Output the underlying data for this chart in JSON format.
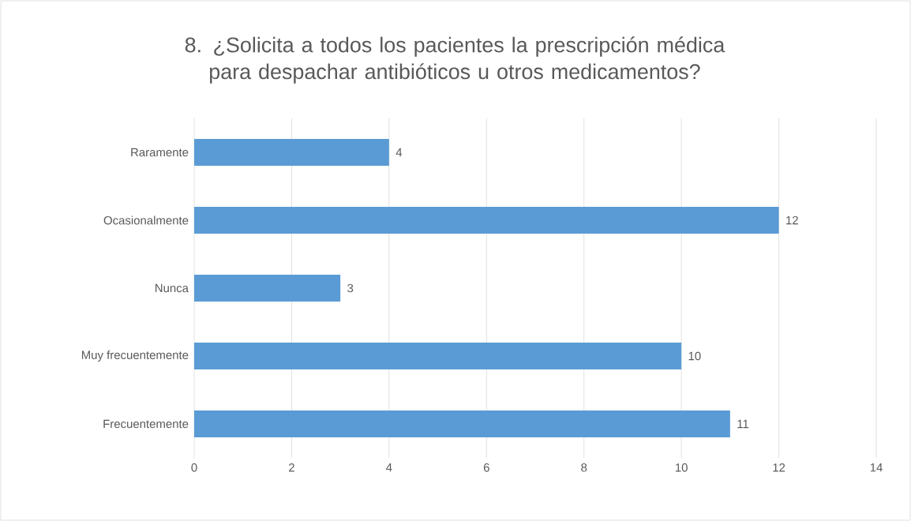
{
  "chart_data": {
    "type": "bar",
    "orientation": "horizontal",
    "title": "8. ¿Solicita a todos los pacientes la prescripción médica para despachar antibióticos u otros medicamentos?",
    "categories": [
      "Raramente",
      "Ocasionalmente",
      "Nunca",
      "Muy frecuentemente",
      "Frecuentemente"
    ],
    "values": [
      4,
      12,
      3,
      10,
      11
    ],
    "color": "#5b9bd5",
    "xlim": [
      0,
      14
    ],
    "xticks": [
      0,
      2,
      4,
      6,
      8,
      10,
      12,
      14
    ],
    "grid": "x",
    "data_labels": true
  }
}
